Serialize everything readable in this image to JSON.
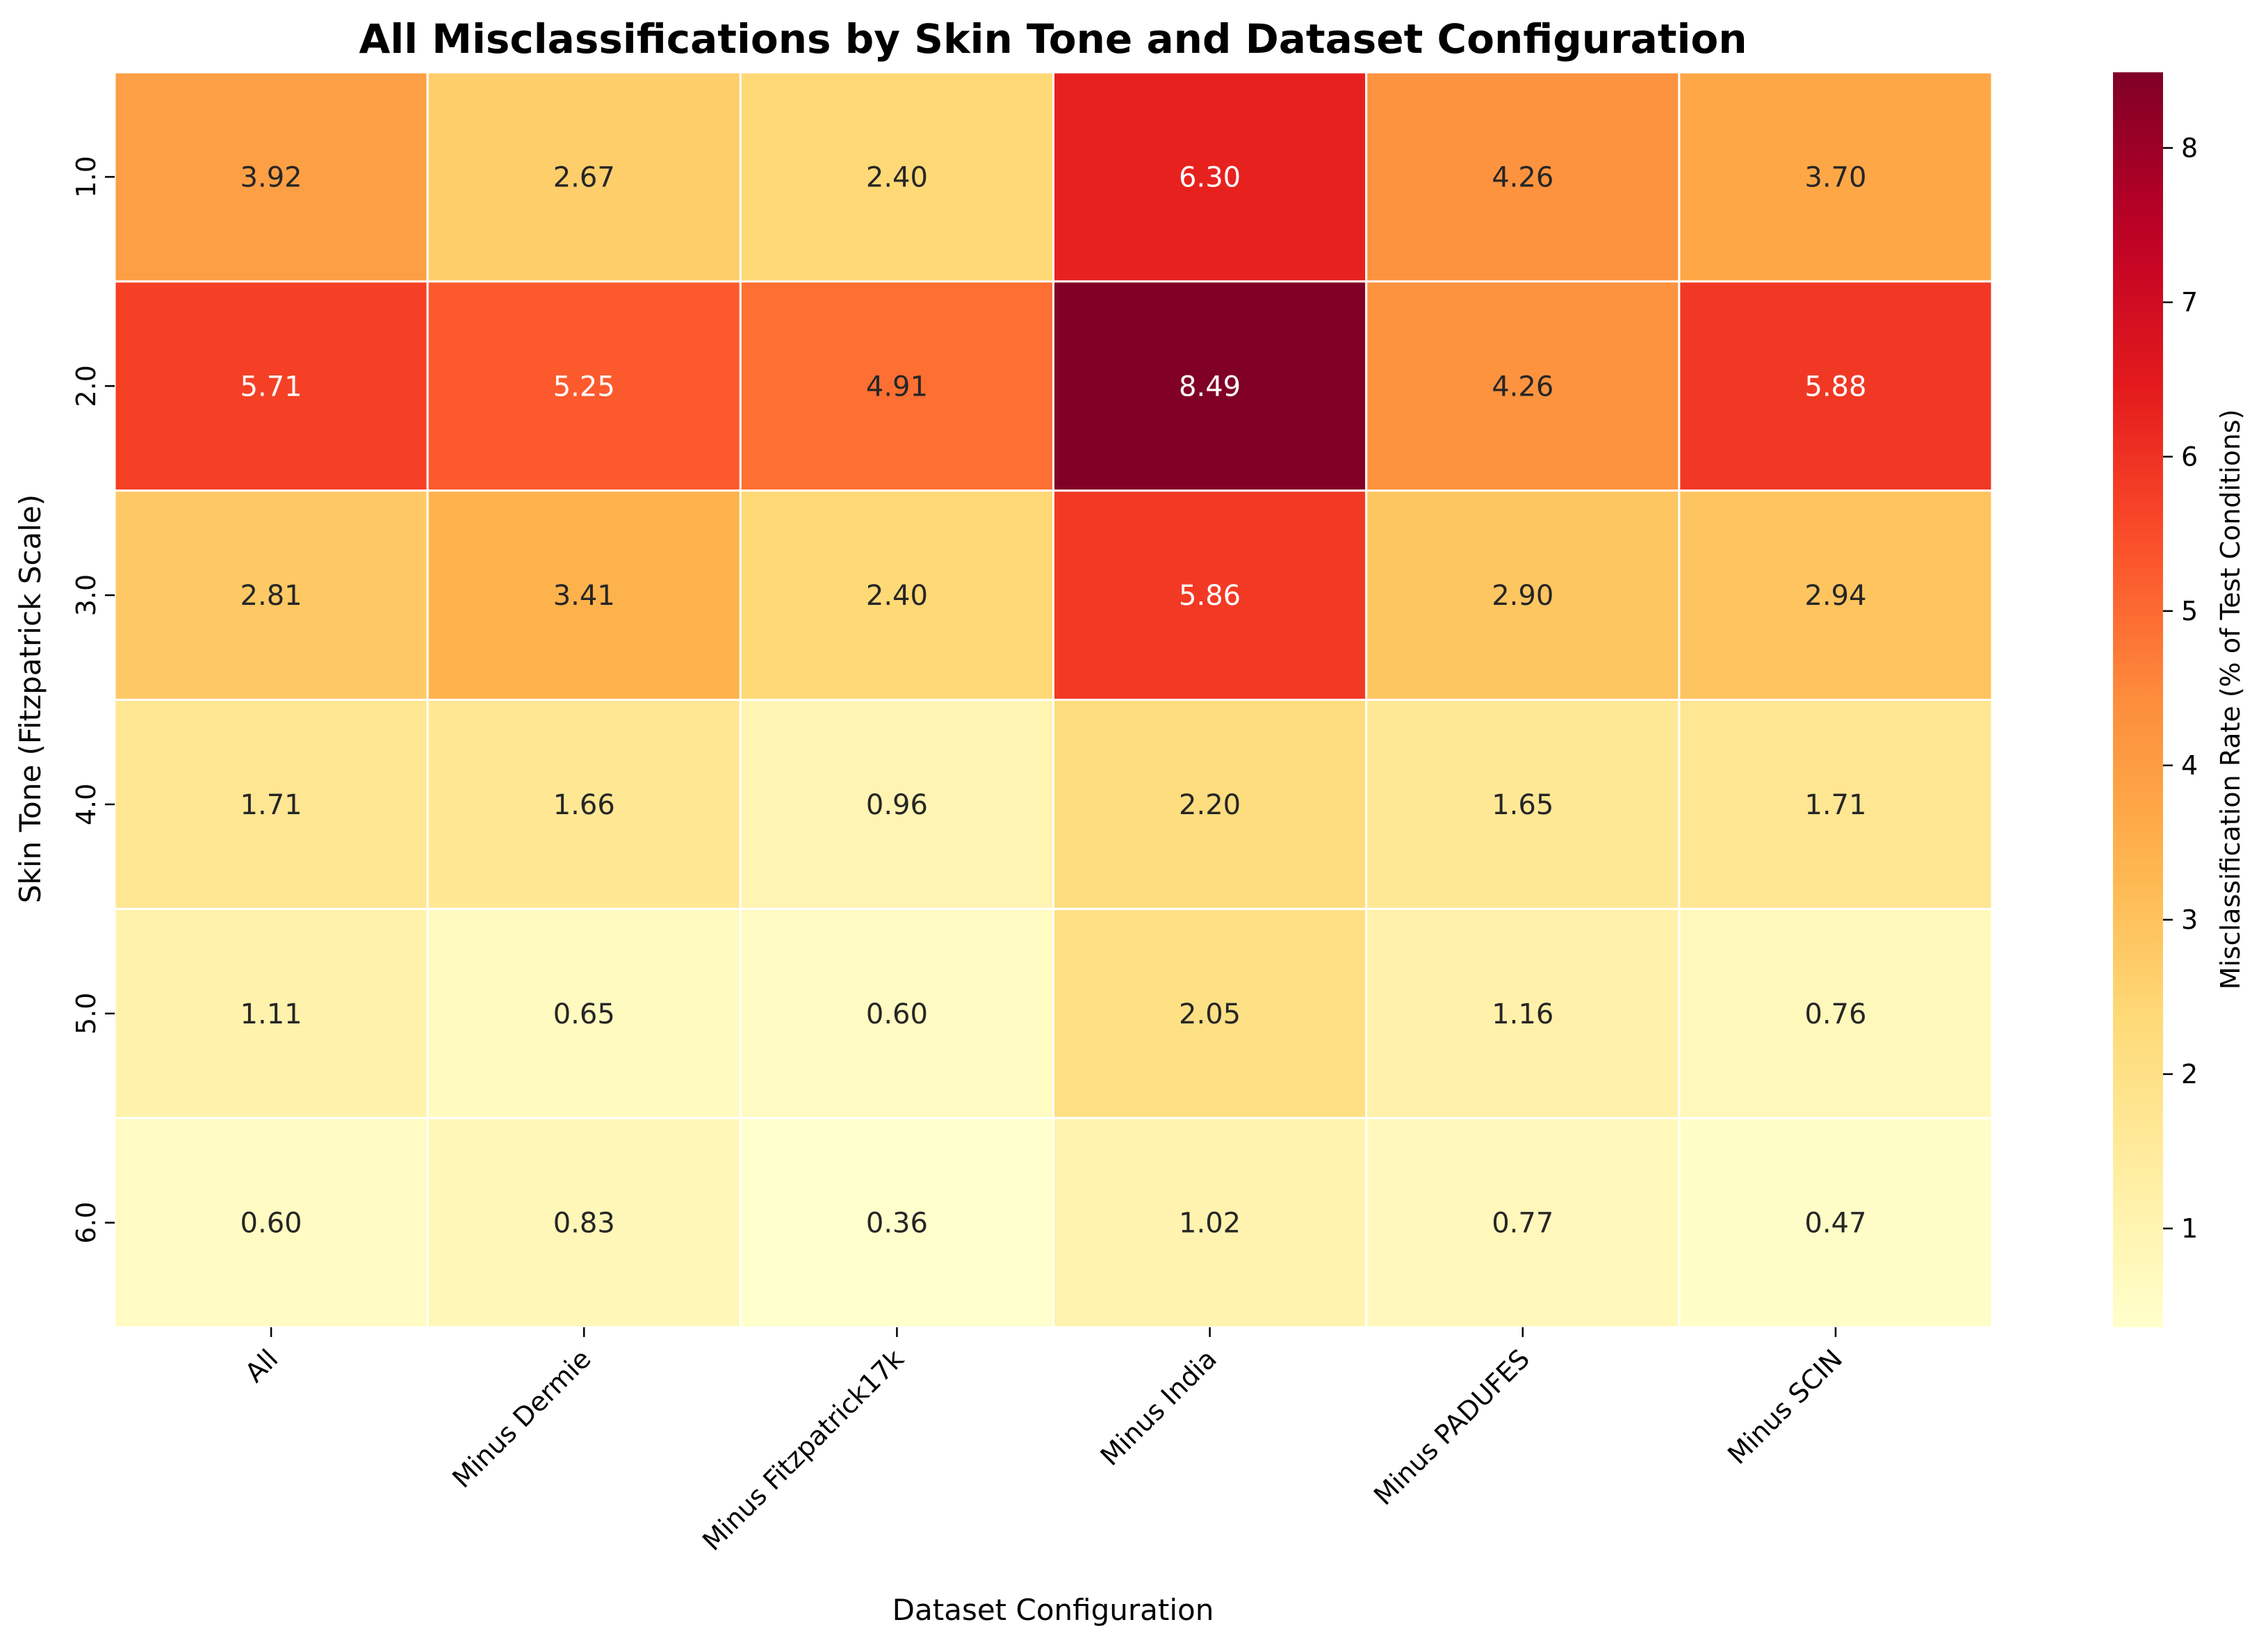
{
  "chart_data": {
    "type": "heatmap",
    "title": "All Misclassifications by Skin Tone and Dataset Configuration",
    "xlabel": "Dataset Configuration",
    "ylabel": "Skin Tone (Fitzpatrick Scale)",
    "x_categories": [
      "All",
      "Minus Dermie",
      "Minus Fitzpatrick17k",
      "Minus India",
      "Minus PADUFES",
      "Minus SCIN"
    ],
    "y_categories": [
      "1.0",
      "2.0",
      "3.0",
      "4.0",
      "5.0",
      "6.0"
    ],
    "values": [
      [
        3.92,
        2.67,
        2.4,
        6.3,
        4.26,
        3.7
      ],
      [
        5.71,
        5.25,
        4.91,
        8.49,
        4.26,
        5.88
      ],
      [
        2.81,
        3.41,
        2.4,
        5.86,
        2.9,
        2.94
      ],
      [
        1.71,
        1.66,
        0.96,
        2.2,
        1.65,
        1.71
      ],
      [
        1.11,
        0.65,
        0.6,
        2.05,
        1.16,
        0.76
      ],
      [
        0.6,
        0.83,
        0.36,
        1.02,
        0.77,
        0.47
      ]
    ],
    "value_labels": [
      [
        "3.92",
        "2.67",
        "2.40",
        "6.30",
        "4.26",
        "3.70"
      ],
      [
        "5.71",
        "5.25",
        "4.91",
        "8.49",
        "4.26",
        "5.88"
      ],
      [
        "2.81",
        "3.41",
        "2.40",
        "5.86",
        "2.90",
        "2.94"
      ],
      [
        "1.71",
        "1.66",
        "0.96",
        "2.20",
        "1.65",
        "1.71"
      ],
      [
        "1.11",
        "0.65",
        "0.60",
        "2.05",
        "1.16",
        "0.76"
      ],
      [
        "0.60",
        "0.83",
        "0.36",
        "1.02",
        "0.77",
        "0.47"
      ]
    ],
    "colorbar": {
      "label": "Misclassification Rate (% of Test Conditions)",
      "range": [
        0.36,
        8.49
      ],
      "ticks": [
        1,
        2,
        3,
        4,
        5,
        6,
        7,
        8
      ],
      "tick_labels": [
        "1",
        "2",
        "3",
        "4",
        "5",
        "6",
        "7",
        "8"
      ],
      "colormap": "YlOrRd"
    },
    "cell_border_color": "#ffffff"
  }
}
